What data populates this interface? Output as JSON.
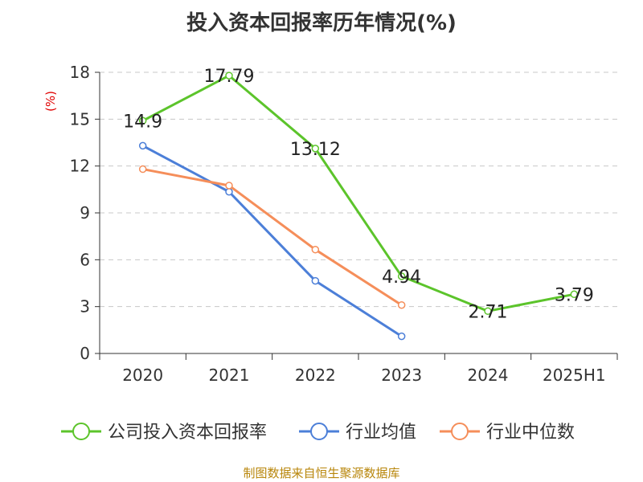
{
  "chart_data": {
    "type": "line",
    "title": "投入资本回报率历年情况(%)",
    "ylabel": "(%)",
    "categories": [
      "2020",
      "2021",
      "2022",
      "2023",
      "2024",
      "2025H1"
    ],
    "ylim": [
      0,
      18
    ],
    "yticks": [
      0,
      3,
      6,
      9,
      12,
      15,
      18
    ],
    "grid": true,
    "legend_position": "bottom",
    "series": [
      {
        "name": "公司投入资本回报率",
        "color": "#5cc42b",
        "values": [
          14.9,
          17.79,
          13.12,
          4.94,
          2.71,
          3.79
        ],
        "labels": [
          "14.9",
          "17.79",
          "13.12",
          "4.94",
          "2.71",
          "3.79"
        ]
      },
      {
        "name": "行业均值",
        "color": "#4c7fd8",
        "values": [
          13.3,
          10.35,
          4.65,
          1.1,
          null,
          null
        ]
      },
      {
        "name": "行业中位数",
        "color": "#f58e5a",
        "values": [
          11.8,
          10.75,
          6.65,
          3.1,
          null,
          null
        ]
      }
    ]
  },
  "source": "制图数据来自恒生聚源数据库"
}
